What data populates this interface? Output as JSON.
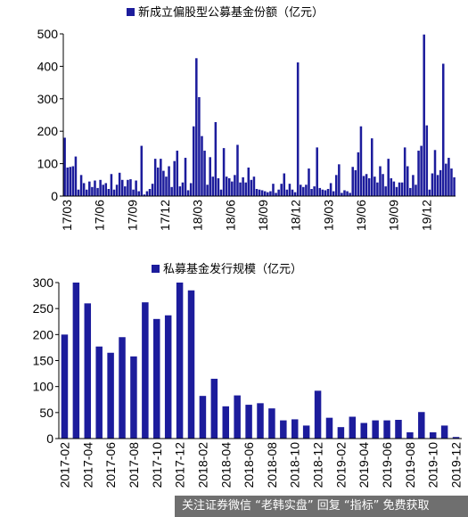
{
  "chart_data": [
    {
      "type": "bar",
      "title": "新成立偏股型公募基金份额（亿元）",
      "series": [
        {
          "name": "新成立偏股型公募基金份额（亿元）",
          "color": "#1c1c9c"
        }
      ],
      "ylim": [
        0,
        500
      ],
      "yticks": [
        0,
        100,
        200,
        300,
        400,
        500
      ],
      "x_tick_labels": [
        "17/03",
        "17/06",
        "17/09",
        "17/12",
        "18/03",
        "18/06",
        "18/09",
        "18/12",
        "19/03",
        "19/06",
        "19/09",
        "19/12"
      ],
      "values": [
        180,
        88,
        90,
        92,
        122,
        20,
        65,
        40,
        20,
        45,
        28,
        48,
        25,
        50,
        35,
        40,
        22,
        68,
        20,
        35,
        72,
        50,
        30,
        50,
        52,
        20,
        48,
        15,
        155,
        5,
        15,
        22,
        38,
        115,
        88,
        115,
        78,
        60,
        92,
        28,
        108,
        140,
        30,
        42,
        118,
        18,
        40,
        215,
        425,
        305,
        185,
        140,
        35,
        120,
        60,
        228,
        55,
        20,
        148,
        60,
        55,
        45,
        65,
        158,
        42,
        58,
        42,
        88,
        50,
        60,
        22,
        20,
        18,
        15,
        12,
        15,
        38,
        10,
        20,
        38,
        70,
        20,
        38,
        20,
        12,
        412,
        35,
        28,
        35,
        85,
        22,
        30,
        150,
        25,
        20,
        18,
        22,
        40,
        15,
        65,
        98,
        10,
        18,
        15,
        10,
        90,
        80,
        135,
        215,
        62,
        68,
        55,
        178,
        60,
        42,
        92,
        68,
        30,
        115,
        55,
        45,
        28,
        42,
        42,
        150,
        92,
        25,
        65,
        35,
        140,
        155,
        498,
        218,
        20,
        70,
        142,
        65,
        80,
        408,
        100,
        118,
        85,
        58
      ]
    },
    {
      "type": "bar",
      "title": "私募基金发行规模（亿元）",
      "series": [
        {
          "name": "私募基金发行规模（亿元）",
          "color": "#1c1c9c"
        }
      ],
      "ylim": [
        0,
        300
      ],
      "yticks": [
        0,
        50,
        100,
        150,
        200,
        250,
        300
      ],
      "categories": [
        "2017-02",
        "2017-03",
        "2017-04",
        "2017-05",
        "2017-06",
        "2017-07",
        "2017-08",
        "2017-09",
        "2017-10",
        "2017-11",
        "2017-12",
        "2018-01",
        "2018-02",
        "2018-03",
        "2018-04",
        "2018-05",
        "2018-06",
        "2018-07",
        "2018-08",
        "2018-09",
        "2018-10",
        "2018-11",
        "2018-12",
        "2019-01",
        "2019-02",
        "2019-03",
        "2019-04",
        "2019-05",
        "2019-06",
        "2019-07",
        "2019-08",
        "2019-09",
        "2019-10",
        "2019-11",
        "2019-12"
      ],
      "x_tick_labels": [
        "2017-02",
        "2017-04",
        "2017-06",
        "2017-08",
        "2017-10",
        "2017-12",
        "2018-02",
        "2018-04",
        "2018-06",
        "2018-08",
        "2018-10",
        "2018-12",
        "2019-02",
        "2019-04",
        "2019-06",
        "2019-08",
        "2019-10",
        "2019-12"
      ],
      "values": [
        200,
        302,
        260,
        177,
        165,
        195,
        158,
        262,
        230,
        237,
        302,
        285,
        82,
        115,
        62,
        83,
        65,
        68,
        58,
        35,
        37,
        25,
        92,
        40,
        22,
        42,
        30,
        35,
        35,
        36,
        12,
        51,
        12,
        25,
        3
      ]
    }
  ],
  "watermark": {
    "text": "关注证券微信 “老韩实盘” 回复 “指标” 免费获取"
  }
}
